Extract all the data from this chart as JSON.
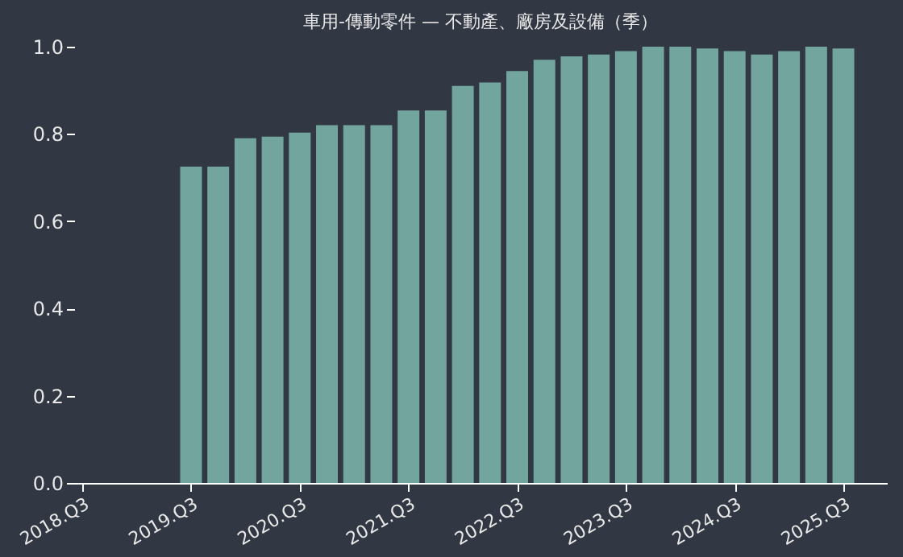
{
  "chart_data": {
    "type": "bar",
    "title": "車用-傳動零件 — 不動產、廠房及設備（季）",
    "categories": [
      "2018.Q3",
      null,
      null,
      null,
      "2019.Q3",
      null,
      null,
      null,
      "2020.Q3",
      null,
      null,
      null,
      "2021.Q3",
      null,
      null,
      null,
      "2022.Q3",
      null,
      null,
      null,
      "2023.Q3",
      null,
      null,
      null,
      "2024.Q3",
      null,
      null,
      null,
      "2025.Q3"
    ],
    "values": [
      null,
      null,
      null,
      null,
      0.725,
      0.725,
      0.79,
      0.794,
      0.803,
      0.82,
      0.82,
      0.82,
      0.854,
      0.854,
      0.91,
      0.918,
      0.944,
      0.97,
      0.978,
      0.982,
      0.99,
      1.0,
      1.0,
      0.996,
      0.99,
      0.982,
      0.99,
      1.0,
      0.996
    ],
    "color": "#73a59f",
    "ylim": [
      0,
      1.0
    ],
    "yticks": [
      {
        "value": 0,
        "label": "0.0"
      },
      0.2,
      0.4,
      0.6,
      0.8,
      {
        "value": 1.0,
        "label": "1.0"
      }
    ],
    "grid": false
  }
}
